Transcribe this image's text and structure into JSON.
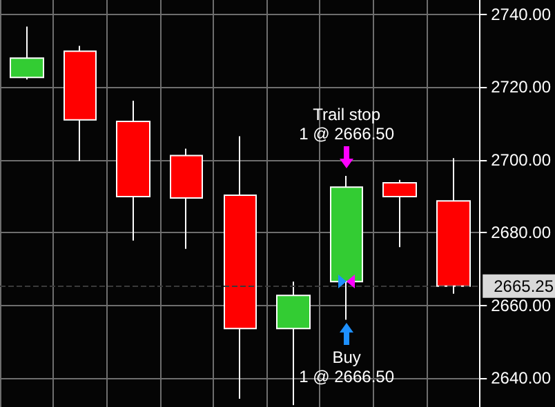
{
  "chart_data": {
    "type": "candlestick",
    "categories": [
      null,
      null,
      null,
      null,
      null,
      null,
      null,
      null,
      null
    ],
    "ohlc": [
      [
        2722.7,
        2736.7,
        2722.1,
        2728
      ],
      [
        2729.9,
        2731.4,
        2699.7,
        2711
      ],
      [
        2710.6,
        2716.3,
        2677.8,
        2689.9
      ],
      [
        2701.2,
        2703.1,
        2675.5,
        2689.5
      ],
      [
        2690.3,
        2706.5,
        2634.3,
        2653.6
      ],
      [
        2653.6,
        2666.5,
        2632.5,
        2662.7
      ],
      [
        2666.5,
        2695.6,
        2656,
        2692.5
      ],
      [
        2693.7,
        2694.5,
        2676,
        2689.9
      ],
      [
        2688.7,
        2700.5,
        2663.2,
        2665.25
      ]
    ],
    "colors": [
      "#33cc33",
      "#ff0000",
      "#ff0000",
      "#ff0000",
      "#ff0000",
      "#33cc33",
      "#33cc33",
      "#ff0000",
      "#ff0000"
    ],
    "ylim": [
      2632,
      2744
    ],
    "yticks": [
      {
        "value": 2640,
        "label": "2640.00"
      },
      {
        "value": 2660,
        "label": "2660.00"
      },
      {
        "value": 2680,
        "label": "2680.00"
      },
      {
        "value": 2700,
        "label": "2700.00"
      },
      {
        "value": 2720,
        "label": "2720.00"
      },
      {
        "value": 2740,
        "label": "2740.00"
      }
    ],
    "tick_labels": "y",
    "grid": true,
    "ref_lines": [
      {
        "axis": "y",
        "value": 2665.25,
        "label": "2665.25"
      }
    ],
    "annotations": [
      {
        "text": "Trail stop\n1 @ 2666.50",
        "y": 2695.6
      },
      {
        "text": "Buy\n1 @ 2666.50",
        "y": 2656
      }
    ]
  }
}
